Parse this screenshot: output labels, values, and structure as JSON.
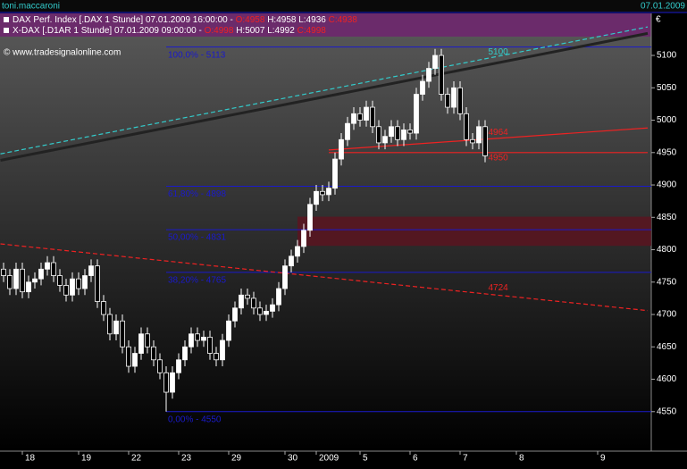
{
  "header": {
    "user": "toni.maccaroni",
    "date": "07.01.2009"
  },
  "chart_data": {
    "type": "candlestick",
    "legend": [
      {
        "name": "DAX Perf. Index [.DAX  1 Stunde] 07.01.2009 16:00:00 -",
        "open": "O:4958",
        "high": "H:4958",
        "low": "L:4936",
        "close": "C:4938"
      },
      {
        "name": "X-DAX [.D1AR  1 Stunde] 07.01.2009 09:00:00 -",
        "open": "O:4998",
        "high": "H:5007",
        "low": "L:4992",
        "close": "C:4998"
      }
    ],
    "copyright": "© www.tradesignalonline.com",
    "currency": "€",
    "up_color": "#ffffff",
    "down_color": "#000000",
    "wick_color": "#ffffff",
    "categories": [
      null,
      null,
      null,
      "18",
      null,
      null,
      null,
      null,
      null,
      null,
      null,
      null,
      "19",
      null,
      null,
      null,
      null,
      null,
      null,
      null,
      "22",
      null,
      null,
      null,
      null,
      null,
      null,
      null,
      "23",
      null,
      null,
      null,
      null,
      null,
      null,
      null,
      "29",
      null,
      null,
      null,
      null,
      null,
      null,
      null,
      null,
      "30",
      null,
      null,
      null,
      null,
      "2009",
      null,
      null,
      null,
      null,
      null,
      null,
      "5",
      null,
      null,
      null,
      null,
      null,
      null,
      null,
      "6",
      null,
      null,
      null,
      null,
      null,
      null,
      null,
      "7",
      null,
      null,
      null,
      null,
      null,
      null,
      null,
      null,
      "8",
      null,
      null,
      null,
      null,
      null,
      null,
      null,
      null,
      null,
      null,
      null,
      null,
      "9"
    ],
    "open": [
      4770,
      4760,
      4740,
      4770,
      4735,
      4750,
      4755,
      4770,
      4780,
      4760,
      4745,
      4730,
      4755,
      4740,
      4760,
      4775,
      4720,
      4700,
      4670,
      4690,
      4650,
      4620,
      4640,
      4670,
      4650,
      4630,
      4610,
      4580,
      4610,
      4630,
      4650,
      4670,
      4660,
      4665,
      4640,
      4630,
      4660,
      4690,
      4710,
      4730,
      4725,
      4710,
      4700,
      4705,
      4715,
      4740,
      4775,
      4790,
      4805,
      4830,
      4870,
      4890,
      4885,
      4895,
      4940,
      4970,
      4995,
      5010,
      5000,
      5020,
      4990,
      4965,
      4975,
      4990,
      4970,
      4985,
      4980,
      5040,
      5060,
      5080,
      5100,
      5040,
      5020,
      5050,
      5010,
      4970,
      4965,
      4990,
      null,
      null,
      null,
      null,
      null,
      null,
      null,
      null,
      null,
      null,
      null,
      null,
      null,
      null,
      null,
      null,
      null,
      null
    ],
    "high": [
      4780,
      4770,
      4780,
      4780,
      4760,
      4765,
      4780,
      4790,
      4790,
      4770,
      4755,
      4765,
      4765,
      4770,
      4785,
      4785,
      4730,
      4710,
      4700,
      4700,
      4660,
      4650,
      4680,
      4680,
      4660,
      4640,
      4620,
      4620,
      4640,
      4660,
      4680,
      4680,
      4675,
      4675,
      4650,
      4670,
      4700,
      4720,
      4740,
      4740,
      4735,
      4720,
      4715,
      4725,
      4750,
      4785,
      4800,
      4815,
      4840,
      4880,
      4900,
      4900,
      4905,
      4950,
      4980,
      5005,
      5020,
      5020,
      5030,
      5030,
      5000,
      4985,
      5000,
      5000,
      4995,
      4995,
      5050,
      5070,
      5090,
      5110,
      5110,
      5050,
      5060,
      5060,
      5020,
      4980,
      5000,
      5000,
      null,
      null,
      null,
      null,
      null,
      null,
      null,
      null,
      null,
      null,
      null,
      null,
      null,
      null,
      null,
      null,
      null,
      null
    ],
    "low": [
      4750,
      4730,
      4730,
      4725,
      4725,
      4740,
      4745,
      4760,
      4750,
      4735,
      4720,
      4720,
      4730,
      4730,
      4750,
      4710,
      4690,
      4660,
      4660,
      4640,
      4610,
      4610,
      4630,
      4640,
      4620,
      4600,
      4550,
      4570,
      4600,
      4620,
      4640,
      4650,
      4650,
      4630,
      4620,
      4620,
      4650,
      4680,
      4700,
      4715,
      4700,
      4690,
      4690,
      4695,
      4705,
      4730,
      4765,
      4780,
      4795,
      4820,
      4860,
      4875,
      4875,
      4885,
      4930,
      4960,
      4985,
      4990,
      4990,
      4980,
      4955,
      4955,
      4965,
      4960,
      4960,
      4970,
      4970,
      5030,
      5050,
      5070,
      5030,
      5010,
      5010,
      5000,
      4960,
      4955,
      4955,
      4935,
      null,
      null,
      null,
      null,
      null,
      null,
      null,
      null,
      null,
      null,
      null,
      null,
      null,
      null,
      null,
      null,
      null,
      null
    ],
    "close": [
      4760,
      4740,
      4770,
      4735,
      4750,
      4755,
      4770,
      4780,
      4760,
      4745,
      4730,
      4755,
      4740,
      4760,
      4775,
      4720,
      4700,
      4670,
      4690,
      4650,
      4620,
      4640,
      4670,
      4650,
      4630,
      4610,
      4580,
      4610,
      4630,
      4650,
      4670,
      4660,
      4665,
      4640,
      4630,
      4660,
      4690,
      4710,
      4730,
      4725,
      4710,
      4700,
      4705,
      4715,
      4740,
      4775,
      4790,
      4805,
      4830,
      4870,
      4890,
      4885,
      4895,
      4940,
      4970,
      4995,
      5010,
      5000,
      5020,
      4990,
      4965,
      4975,
      4990,
      4970,
      4985,
      4980,
      5040,
      5060,
      5080,
      5100,
      5040,
      5020,
      5050,
      5010,
      4970,
      4965,
      4990,
      4945,
      null,
      null,
      null,
      null,
      null,
      null,
      null,
      null,
      null,
      null,
      null,
      null,
      null,
      null,
      null,
      null,
      null,
      null
    ],
    "ylim": [
      4489,
      5158
    ],
    "yticks": [
      4550,
      4600,
      4650,
      4700,
      4750,
      4800,
      4850,
      4900,
      4950,
      5000,
      5050,
      5100
    ],
    "fib_color": "#1a1acc",
    "fib_levels": [
      {
        "value": 5113,
        "label": "100,0% - 5113"
      },
      {
        "value": 4898,
        "label": "61,80% - 4898"
      },
      {
        "value": 4831,
        "label": "50,00% - 4831"
      },
      {
        "value": 4765,
        "label": "38,20% - 4765"
      },
      {
        "value": 4550,
        "label": "0,00% - 4550"
      }
    ],
    "zone": {
      "low": 4806,
      "high": 4851,
      "color": "#5a1420"
    },
    "trendlines": [
      {
        "color": "#222222",
        "dash": false,
        "x": [
          -0.5,
          103
        ],
        "y": [
          4938,
          5134
        ]
      },
      {
        "color": "#33cccc",
        "dash": true,
        "x": [
          -0.5,
          103
        ],
        "y": [
          4948,
          5144
        ],
        "label": "5100",
        "label_color": "#33cccc"
      },
      {
        "color": "#ee2222",
        "dash": true,
        "x": [
          -0.5,
          103
        ],
        "y": [
          4809,
          4706
        ],
        "label": "4724",
        "label_color": "#ee2222"
      },
      {
        "color": "#ee2222",
        "dash": false,
        "x": [
          52,
          103
        ],
        "y": [
          4954,
          4988
        ],
        "label": "4964",
        "label_color": "#ee2222"
      },
      {
        "color": "#ee2222",
        "dash": false,
        "x": [
          52,
          103
        ],
        "y": [
          4950,
          4950
        ],
        "label": "4950",
        "label_color": "#ee2222"
      }
    ]
  }
}
